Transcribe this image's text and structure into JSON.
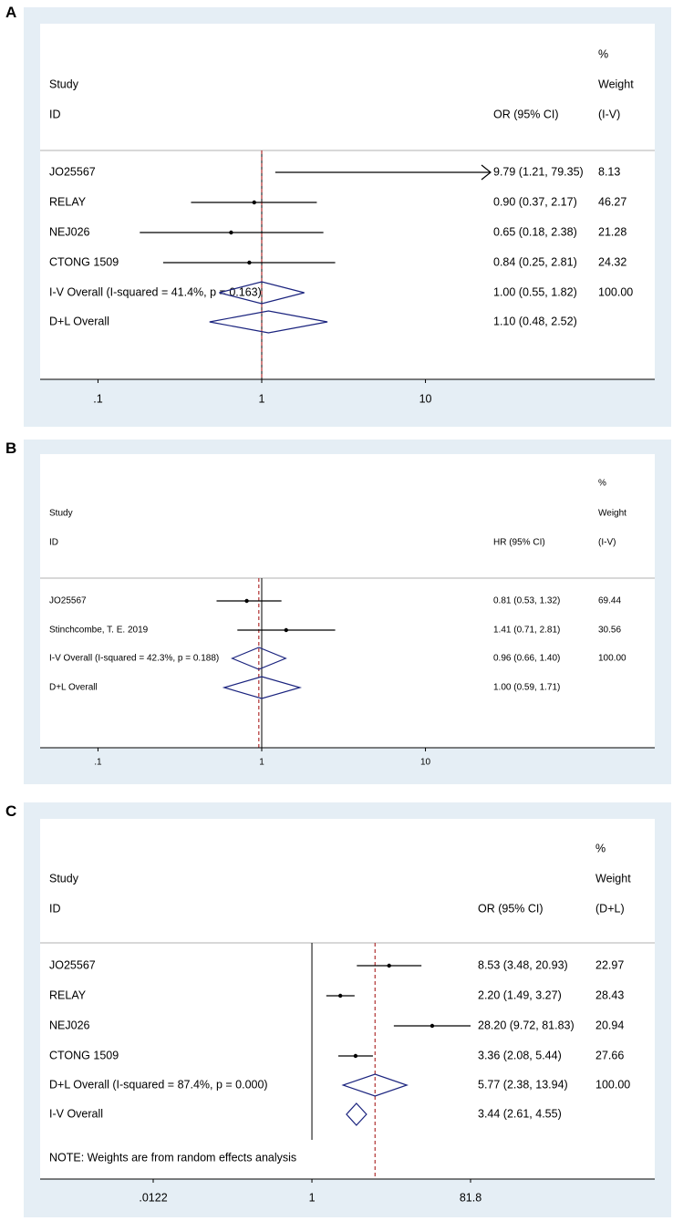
{
  "chart_data": [
    {
      "panel": "A",
      "type": "forest",
      "header": {
        "study_line1": "Study",
        "study_line2": "ID",
        "effect_label": "OR (95% CI)",
        "weight_line0": "%",
        "weight_line1": "Weight",
        "weight_line2": "(I-V)"
      },
      "log_axis": true,
      "xlim": [
        0.04,
        25
      ],
      "ticks": [
        {
          "value": 0.1,
          "label": ".1"
        },
        {
          "value": 1,
          "label": "1"
        },
        {
          "value": 10,
          "label": "10"
        }
      ],
      "null_value": 1,
      "pooled_line": 1.0,
      "studies": [
        {
          "id": "JO25567",
          "est": 9.79,
          "lo": 1.21,
          "hi": 79.35,
          "weight": 8.13,
          "text": "9.79 (1.21, 79.35)",
          "weight_text": "8.13",
          "arrow": true
        },
        {
          "id": "RELAY",
          "est": 0.9,
          "lo": 0.37,
          "hi": 2.17,
          "weight": 46.27,
          "text": "0.90 (0.37, 2.17)",
          "weight_text": "46.27"
        },
        {
          "id": "NEJ026",
          "est": 0.65,
          "lo": 0.18,
          "hi": 2.38,
          "weight": 21.28,
          "text": "0.65 (0.18, 2.38)",
          "weight_text": "21.28"
        },
        {
          "id": "CTONG 1509",
          "est": 0.84,
          "lo": 0.25,
          "hi": 2.81,
          "weight": 24.32,
          "text": "0.84 (0.25, 2.81)",
          "weight_text": "24.32"
        }
      ],
      "overall": [
        {
          "label": "I-V Overall  (I-squared = 41.4%, p = 0.163)",
          "est": 1.0,
          "lo": 0.55,
          "hi": 1.82,
          "text": "1.00 (0.55, 1.82)",
          "weight_text": "100.00"
        },
        {
          "label": "D+L Overall",
          "est": 1.1,
          "lo": 0.48,
          "hi": 2.52,
          "text": "1.10 (0.48, 2.52)",
          "weight_text": ""
        }
      ],
      "note": ""
    },
    {
      "panel": "B",
      "type": "forest",
      "header": {
        "study_line1": "Study",
        "study_line2": "ID",
        "effect_label": "HR (95% CI)",
        "weight_line0": "%",
        "weight_line1": "Weight",
        "weight_line2": "(I-V)"
      },
      "log_axis": true,
      "xlim": [
        0.04,
        25
      ],
      "ticks": [
        {
          "value": 0.1,
          "label": ".1"
        },
        {
          "value": 1,
          "label": "1"
        },
        {
          "value": 10,
          "label": "10"
        }
      ],
      "null_value": 1,
      "pooled_line": 0.96,
      "studies": [
        {
          "id": "JO25567",
          "est": 0.81,
          "lo": 0.53,
          "hi": 1.32,
          "weight": 69.44,
          "text": "0.81 (0.53, 1.32)",
          "weight_text": "69.44"
        },
        {
          "id": "Stinchcombe, T. E. 2019",
          "est": 1.41,
          "lo": 0.71,
          "hi": 2.81,
          "weight": 30.56,
          "text": "1.41 (0.71, 2.81)",
          "weight_text": "30.56"
        }
      ],
      "overall": [
        {
          "label": "I-V Overall  (I-squared = 42.3%, p = 0.188)",
          "est": 0.96,
          "lo": 0.66,
          "hi": 1.4,
          "text": "0.96 (0.66, 1.40)",
          "weight_text": "100.00"
        },
        {
          "label": "D+L Overall",
          "est": 1.0,
          "lo": 0.59,
          "hi": 1.71,
          "text": "1.00 (0.59, 1.71)",
          "weight_text": ""
        }
      ],
      "note": ""
    },
    {
      "panel": "C",
      "type": "forest",
      "header": {
        "study_line1": "Study",
        "study_line2": "ID",
        "effect_label": "OR (95% CI)",
        "weight_line0": "%",
        "weight_line1": "Weight",
        "weight_line2": "(D+L)"
      },
      "log_axis": true,
      "xlim": [
        0.0122,
        81.8
      ],
      "ticks": [
        {
          "value": 0.0122,
          "label": ".0122"
        },
        {
          "value": 1,
          "label": "1"
        },
        {
          "value": 81.8,
          "label": "81.8"
        }
      ],
      "null_value": 1,
      "pooled_line": 5.77,
      "studies": [
        {
          "id": "JO25567",
          "est": 8.53,
          "lo": 3.48,
          "hi": 20.93,
          "weight": 22.97,
          "text": "8.53 (3.48, 20.93)",
          "weight_text": "22.97"
        },
        {
          "id": "RELAY",
          "est": 2.2,
          "lo": 1.49,
          "hi": 3.27,
          "weight": 28.43,
          "text": "2.20 (1.49, 3.27)",
          "weight_text": "28.43"
        },
        {
          "id": "NEJ026",
          "est": 28.2,
          "lo": 9.72,
          "hi": 81.83,
          "weight": 20.94,
          "text": "28.20 (9.72, 81.83)",
          "weight_text": "20.94"
        },
        {
          "id": "CTONG 1509",
          "est": 3.36,
          "lo": 2.08,
          "hi": 5.44,
          "weight": 27.66,
          "text": "3.36 (2.08, 5.44)",
          "weight_text": "27.66"
        }
      ],
      "overall": [
        {
          "label": "D+L Overall  (I-squared = 87.4%, p = 0.000)",
          "est": 5.77,
          "lo": 2.38,
          "hi": 13.94,
          "text": "5.77 (2.38, 13.94)",
          "weight_text": "100.00"
        },
        {
          "label": "I-V Overall",
          "est": 3.44,
          "lo": 2.61,
          "hi": 4.55,
          "text": "3.44 (2.61, 4.55)",
          "weight_text": ""
        }
      ],
      "note": "NOTE: Weights are from random effects analysis"
    }
  ],
  "colors": {
    "panel_bg": "#e5eef5",
    "diamond": "#1a237e",
    "null_line": "#000000",
    "pooled_line": "#b03030"
  }
}
